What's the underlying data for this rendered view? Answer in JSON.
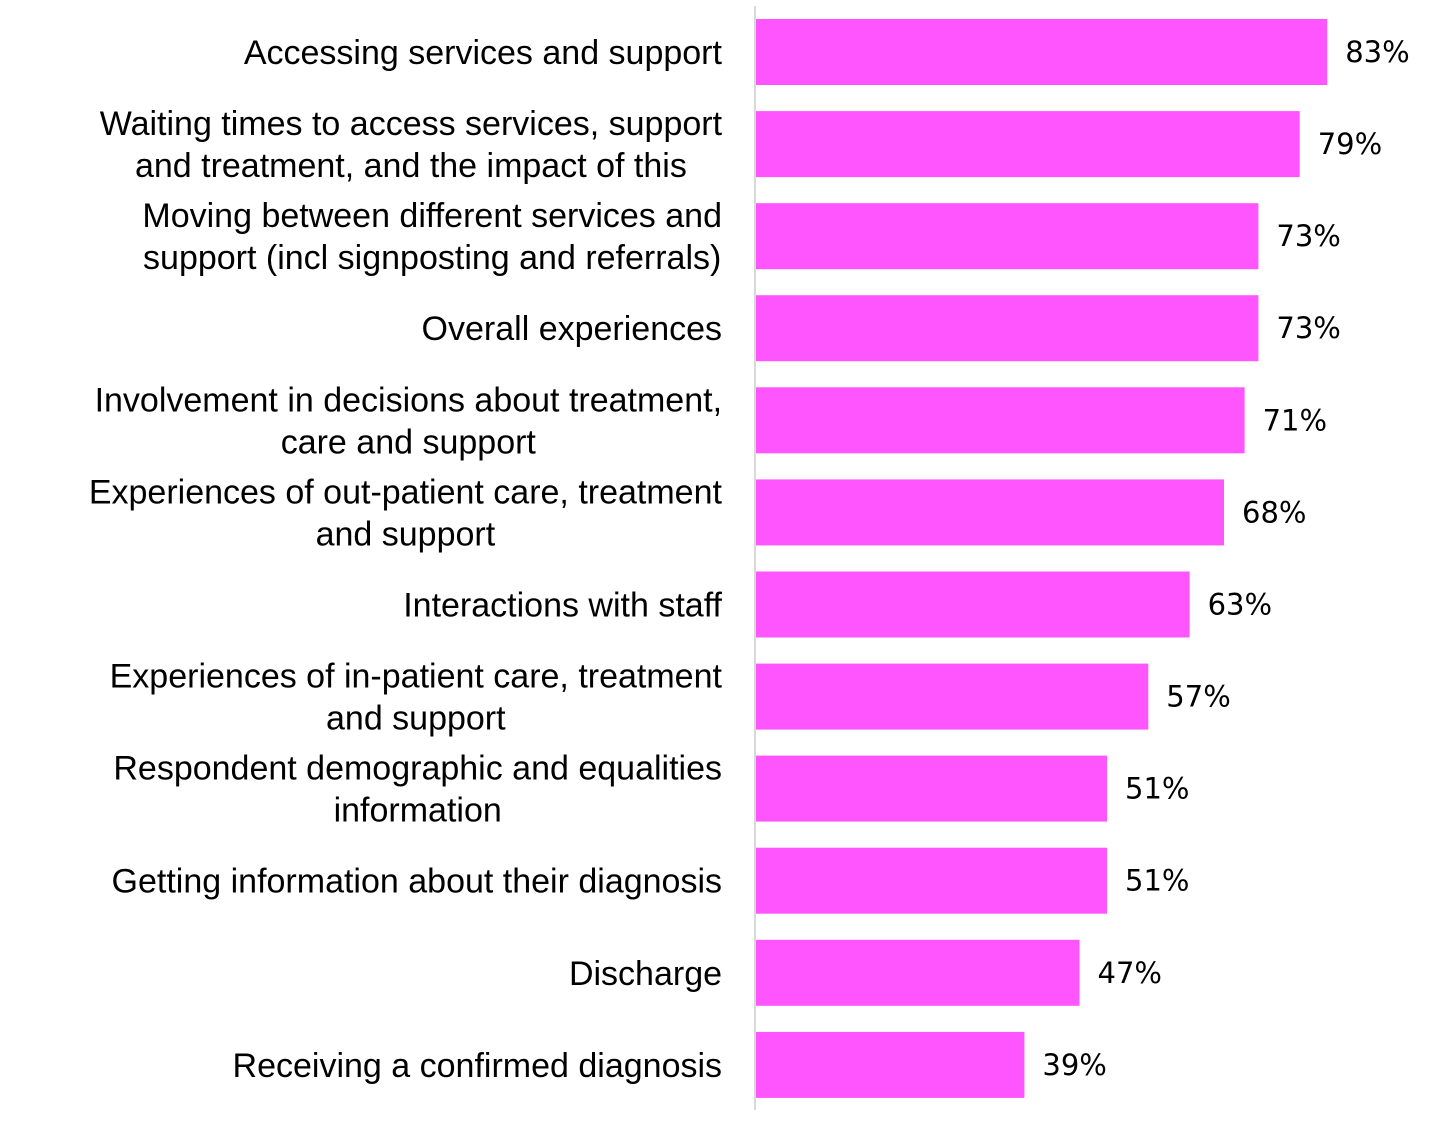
{
  "chart_data": {
    "type": "bar",
    "orientation": "horizontal",
    "title": "",
    "xlabel": "",
    "ylabel": "",
    "xlim": [
      0,
      100
    ],
    "grid": false,
    "legend": "none",
    "bar_color": "#ff55ff",
    "axis_color": "#d9d9d9",
    "categories": [
      [
        "Accessing services and support"
      ],
      [
        "Waiting times to access services, support",
        "and treatment, and the impact of this"
      ],
      [
        "Moving between different services and",
        "support (incl signposting and referrals)"
      ],
      [
        "Overall experiences"
      ],
      [
        "Involvement in decisions about treatment,",
        "care and support"
      ],
      [
        "Experiences of out-patient care, treatment",
        "and support"
      ],
      [
        "Interactions with staff"
      ],
      [
        "Experiences of in-patient care, treatment",
        "and support"
      ],
      [
        "Respondent demographic and equalities",
        "information"
      ],
      [
        "Getting information about their diagnosis"
      ],
      [
        "Discharge"
      ],
      [
        "Receiving a confirmed diagnosis"
      ]
    ],
    "values": [
      83,
      79,
      73,
      73,
      71,
      68,
      63,
      57,
      51,
      51,
      47,
      39
    ],
    "data_labels": [
      "83%",
      "79%",
      "73%",
      "73%",
      "71%",
      "68%",
      "63%",
      "57%",
      "51%",
      "51%",
      "47%",
      "39%"
    ]
  }
}
